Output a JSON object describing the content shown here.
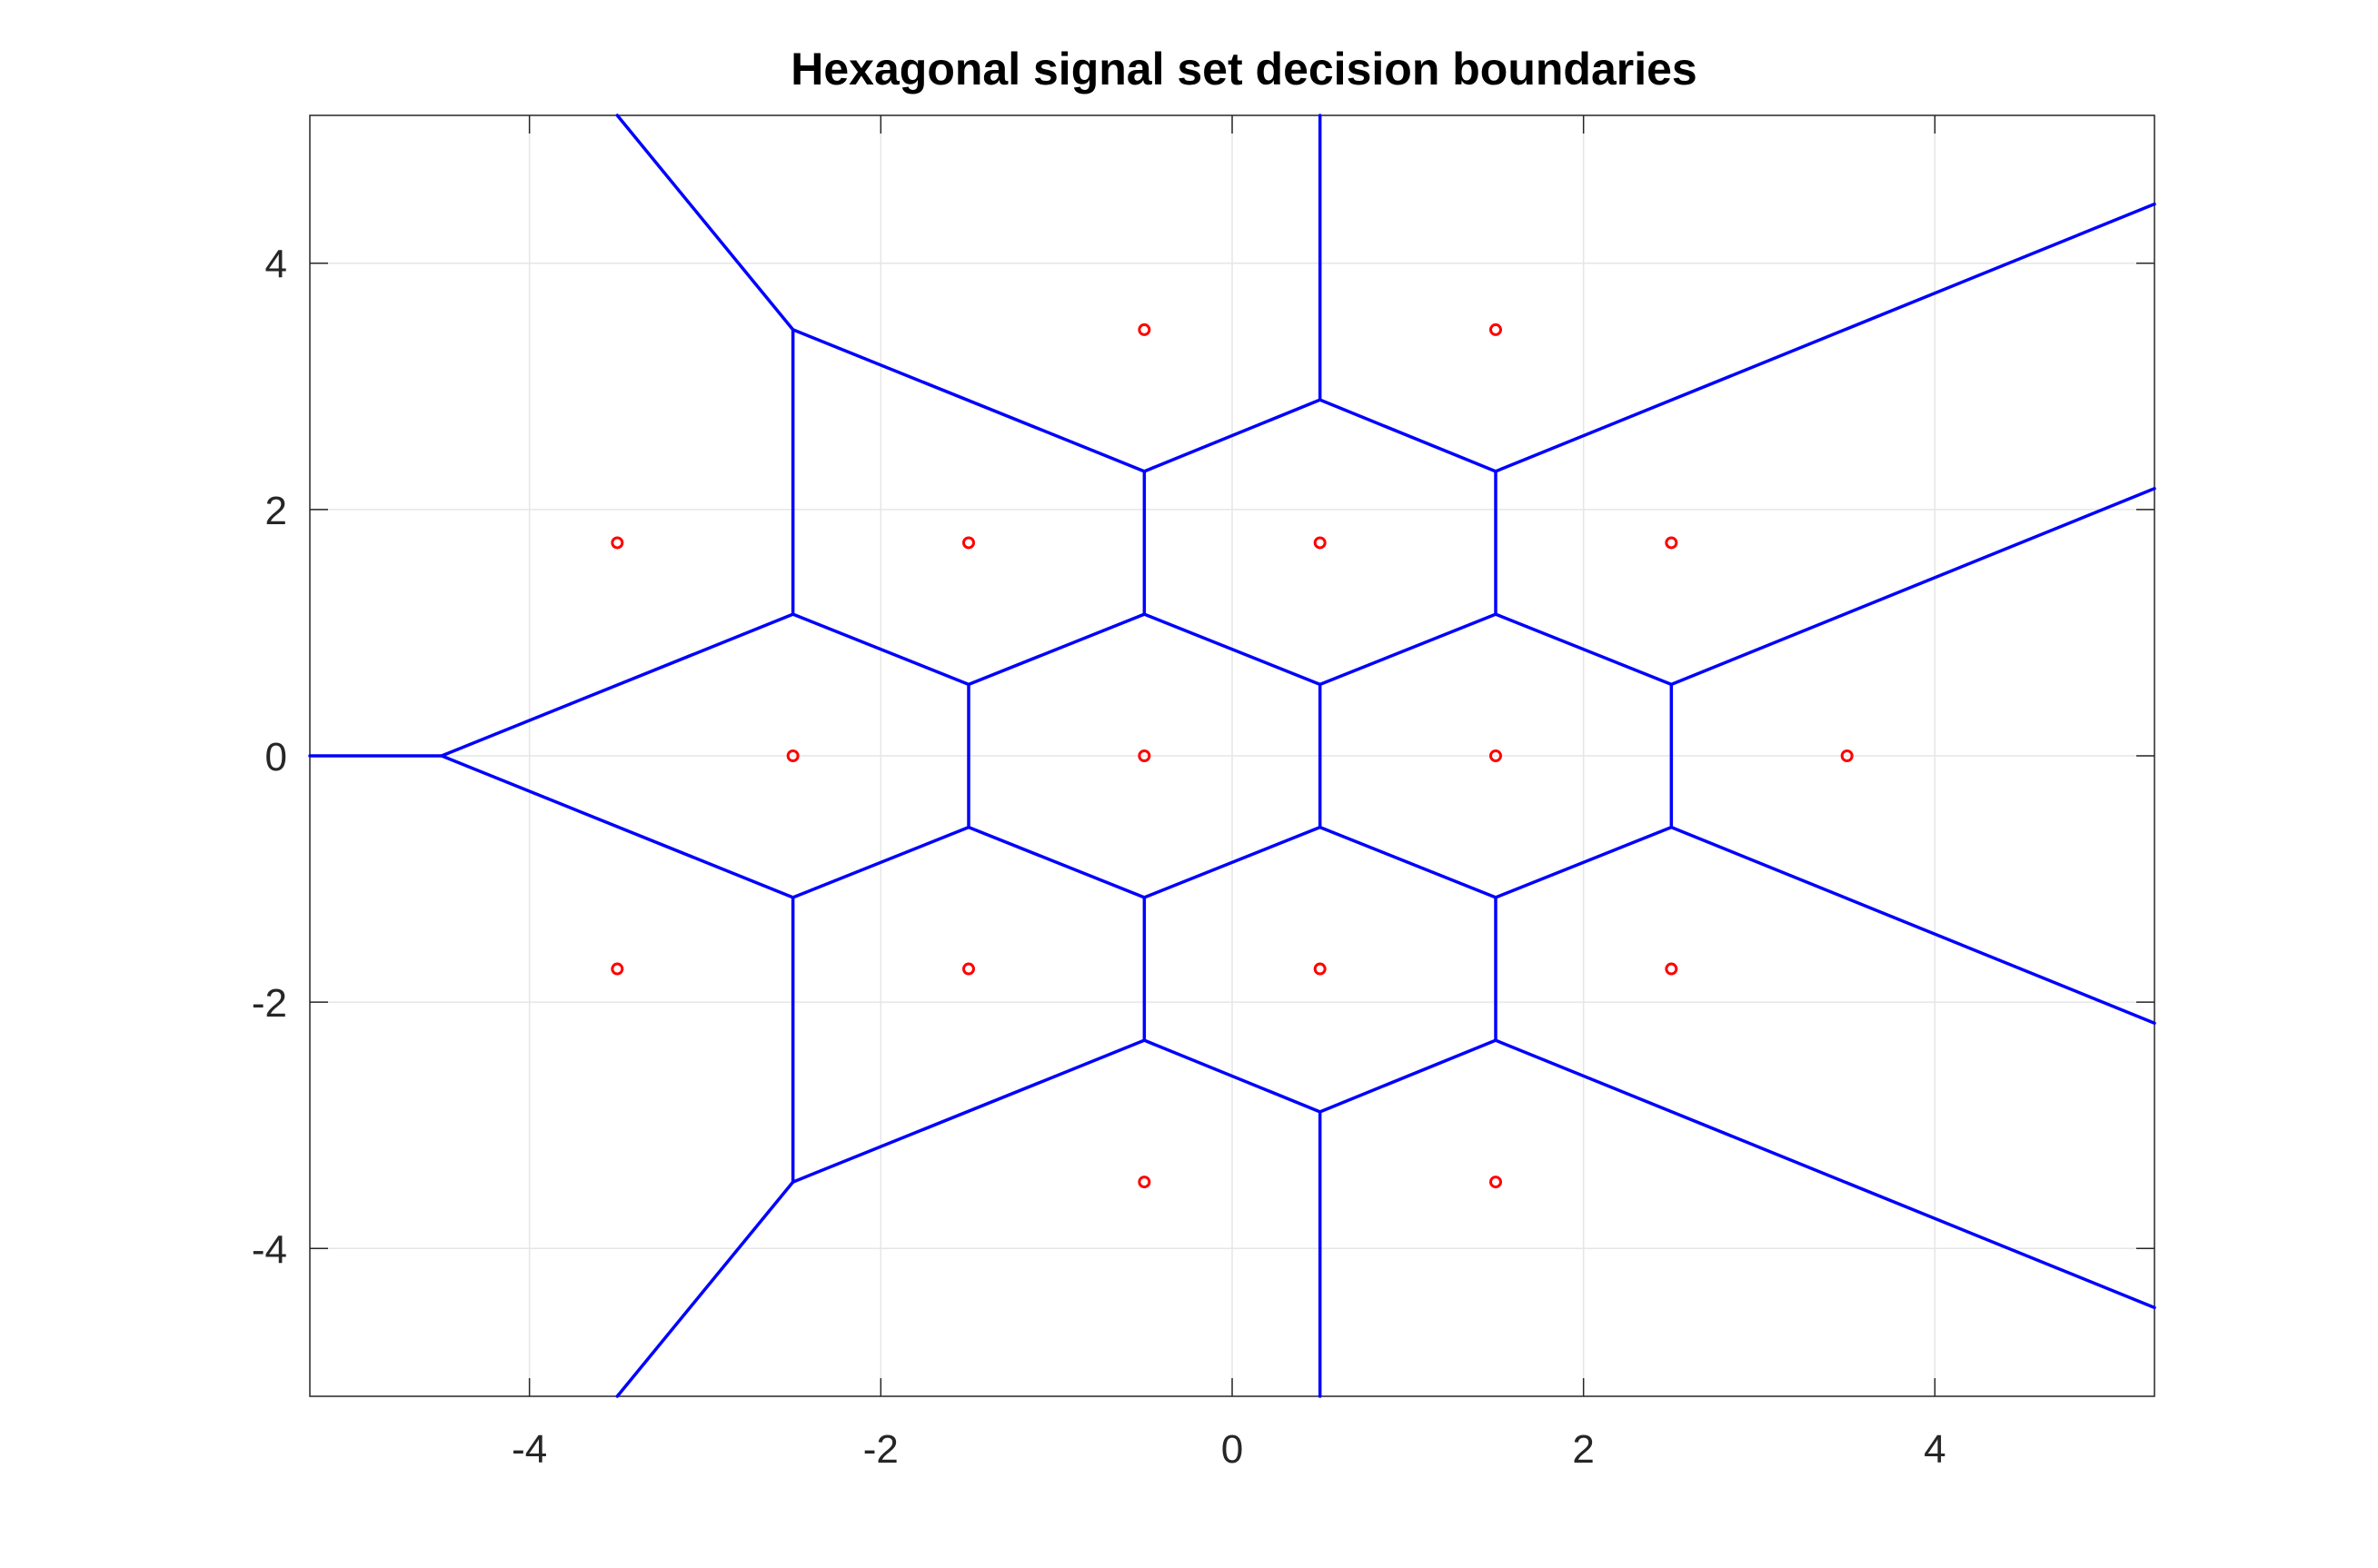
{
  "chart_data": {
    "type": "scatter",
    "title": "Hexagonal signal set decision boundaries",
    "xlabel": "",
    "ylabel": "",
    "xlim": [
      -5.25,
      5.25
    ],
    "ylim": [
      -5.2,
      5.2
    ],
    "xticks": [
      -4,
      -2,
      0,
      2,
      4
    ],
    "yticks": [
      -4,
      -2,
      0,
      2,
      4
    ],
    "grid": true,
    "colors": {
      "points": "#ff0000",
      "boundaries": "#0000ff",
      "grid": "#e6e6e6",
      "axes": "#262626"
    },
    "series": [
      {
        "marker": "circle",
        "points": [
          [
            -0.5,
            3.46
          ],
          [
            1.5,
            3.46
          ],
          [
            -3.5,
            1.73
          ],
          [
            -1.5,
            1.73
          ],
          [
            0.5,
            1.73
          ],
          [
            2.5,
            1.73
          ],
          [
            -2.5,
            0
          ],
          [
            -0.5,
            0
          ],
          [
            1.5,
            0
          ],
          [
            3.5,
            0
          ],
          [
            -3.5,
            -1.73
          ],
          [
            -1.5,
            -1.73
          ],
          [
            0.5,
            -1.73
          ],
          [
            2.5,
            -1.73
          ],
          [
            -0.5,
            -3.46
          ],
          [
            1.5,
            -3.46
          ]
        ]
      },
      {
        "line": "boundaries",
        "segments": [
          [
            [
              -3.5,
              5.2
            ],
            [
              -2.5,
              3.46
            ]
          ],
          [
            [
              -2.5,
              3.46
            ],
            [
              -2.5,
              1.15
            ]
          ],
          [
            [
              -2.5,
              3.46
            ],
            [
              -0.5,
              2.31
            ]
          ],
          [
            [
              -0.5,
              2.31
            ],
            [
              0.5,
              2.89
            ]
          ],
          [
            [
              0.5,
              2.89
            ],
            [
              0.5,
              5.2
            ]
          ],
          [
            [
              0.5,
              2.89
            ],
            [
              1.5,
              2.31
            ]
          ],
          [
            [
              1.5,
              2.31
            ],
            [
              5.25,
              4.48
            ]
          ],
          [
            [
              -0.5,
              2.31
            ],
            [
              -0.5,
              1.15
            ]
          ],
          [
            [
              1.5,
              2.31
            ],
            [
              1.5,
              1.15
            ]
          ],
          [
            [
              -5.25,
              0
            ],
            [
              -4.5,
              0
            ]
          ],
          [
            [
              -4.5,
              0
            ],
            [
              -2.5,
              1.15
            ]
          ],
          [
            [
              -4.5,
              0
            ],
            [
              -2.5,
              -1.15
            ]
          ],
          [
            [
              -2.5,
              1.15
            ],
            [
              -1.5,
              0.58
            ]
          ],
          [
            [
              -1.5,
              0.58
            ],
            [
              -0.5,
              1.15
            ]
          ],
          [
            [
              -0.5,
              1.15
            ],
            [
              0.5,
              0.58
            ]
          ],
          [
            [
              0.5,
              0.58
            ],
            [
              1.5,
              1.15
            ]
          ],
          [
            [
              1.5,
              1.15
            ],
            [
              2.5,
              0.58
            ]
          ],
          [
            [
              2.5,
              0.58
            ],
            [
              5.25,
              2.17
            ]
          ],
          [
            [
              -1.5,
              0.58
            ],
            [
              -1.5,
              -0.58
            ]
          ],
          [
            [
              0.5,
              0.58
            ],
            [
              0.5,
              -0.58
            ]
          ],
          [
            [
              2.5,
              0.58
            ],
            [
              2.5,
              -0.58
            ]
          ],
          [
            [
              -2.5,
              -1.15
            ],
            [
              -1.5,
              -0.58
            ]
          ],
          [
            [
              -1.5,
              -0.58
            ],
            [
              -0.5,
              -1.15
            ]
          ],
          [
            [
              -0.5,
              -1.15
            ],
            [
              0.5,
              -0.58
            ]
          ],
          [
            [
              0.5,
              -0.58
            ],
            [
              1.5,
              -1.15
            ]
          ],
          [
            [
              1.5,
              -1.15
            ],
            [
              2.5,
              -0.58
            ]
          ],
          [
            [
              2.5,
              -0.58
            ],
            [
              5.25,
              -2.17
            ]
          ],
          [
            [
              -2.5,
              -1.15
            ],
            [
              -2.5,
              -3.46
            ]
          ],
          [
            [
              -0.5,
              -1.15
            ],
            [
              -0.5,
              -2.31
            ]
          ],
          [
            [
              1.5,
              -1.15
            ],
            [
              1.5,
              -2.31
            ]
          ],
          [
            [
              -2.5,
              -3.46
            ],
            [
              -0.5,
              -2.31
            ]
          ],
          [
            [
              -0.5,
              -2.31
            ],
            [
              0.5,
              -2.89
            ]
          ],
          [
            [
              0.5,
              -2.89
            ],
            [
              1.5,
              -2.31
            ]
          ],
          [
            [
              1.5,
              -2.31
            ],
            [
              5.25,
              -4.48
            ]
          ],
          [
            [
              0.5,
              -2.89
            ],
            [
              0.5,
              -5.2
            ]
          ],
          [
            [
              -2.5,
              -3.46
            ],
            [
              -3.5,
              -5.2
            ]
          ]
        ]
      }
    ]
  }
}
